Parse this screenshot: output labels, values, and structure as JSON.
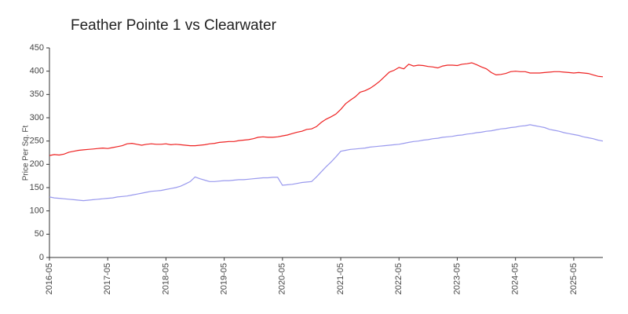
{
  "chart_data": {
    "type": "line",
    "title": "Feather Pointe 1 vs Clearwater",
    "y_label": "Price Per Sq. Ft",
    "x": [
      "2016-05",
      "2016-06",
      "2016-07",
      "2016-08",
      "2016-09",
      "2016-10",
      "2016-11",
      "2016-12",
      "2017-01",
      "2017-02",
      "2017-03",
      "2017-04",
      "2017-05",
      "2017-06",
      "2017-07",
      "2017-08",
      "2017-09",
      "2017-10",
      "2017-11",
      "2017-12",
      "2018-01",
      "2018-02",
      "2018-03",
      "2018-04",
      "2018-05",
      "2018-06",
      "2018-07",
      "2018-08",
      "2018-09",
      "2018-10",
      "2018-11",
      "2018-12",
      "2019-01",
      "2019-02",
      "2019-03",
      "2019-04",
      "2019-05",
      "2019-06",
      "2019-07",
      "2019-08",
      "2019-09",
      "2019-10",
      "2019-11",
      "2019-12",
      "2020-01",
      "2020-02",
      "2020-03",
      "2020-04",
      "2020-05",
      "2020-06",
      "2020-07",
      "2020-08",
      "2020-09",
      "2020-10",
      "2020-11",
      "2020-12",
      "2021-01",
      "2021-02",
      "2021-03",
      "2021-04",
      "2021-05",
      "2021-06",
      "2021-07",
      "2021-08",
      "2021-09",
      "2021-10",
      "2021-11",
      "2021-12",
      "2022-01",
      "2022-02",
      "2022-03",
      "2022-04",
      "2022-05",
      "2022-06",
      "2022-07",
      "2022-08",
      "2022-09",
      "2022-10",
      "2022-11",
      "2022-12",
      "2023-01",
      "2023-02",
      "2023-03",
      "2023-04",
      "2023-05",
      "2023-06",
      "2023-07",
      "2023-08",
      "2023-09",
      "2023-10",
      "2023-11",
      "2023-12",
      "2024-01",
      "2024-02",
      "2024-03",
      "2024-04",
      "2024-05",
      "2024-06",
      "2024-07",
      "2024-08",
      "2024-09",
      "2024-10",
      "2024-11",
      "2024-12",
      "2025-01",
      "2025-02",
      "2025-03",
      "2025-04",
      "2025-05",
      "2025-06",
      "2025-07",
      "2025-08",
      "2025-09",
      "2025-10",
      "2025-11"
    ],
    "series": [
      {
        "color": "#ee2222",
        "values": [
          219,
          221,
          220,
          222,
          226,
          228,
          230,
          231,
          232,
          233,
          234,
          235,
          234,
          236,
          238,
          240,
          244,
          245,
          243,
          241,
          243,
          244,
          243,
          243,
          244,
          242,
          243,
          242,
          241,
          240,
          240,
          241,
          242,
          244,
          245,
          247,
          248,
          249,
          249,
          251,
          252,
          253,
          255,
          258,
          259,
          258,
          258,
          259,
          261,
          263,
          266,
          269,
          271,
          275,
          276,
          281,
          290,
          297,
          302,
          308,
          318,
          330,
          338,
          345,
          355,
          358,
          363,
          370,
          378,
          388,
          398,
          402,
          408,
          405,
          415,
          411,
          413,
          412,
          410,
          409,
          407,
          411,
          413,
          413,
          412,
          415,
          416,
          418,
          414,
          409,
          405,
          397,
          392,
          393,
          395,
          399,
          400,
          399,
          399,
          396,
          396,
          396,
          397,
          398,
          399,
          399,
          398,
          397,
          396,
          397,
          396,
          395,
          392,
          389,
          388
        ]
      },
      {
        "color": "#9999ee",
        "values": [
          130,
          128,
          127,
          126,
          125,
          124,
          123,
          122,
          123,
          124,
          125,
          126,
          127,
          128,
          130,
          131,
          132,
          134,
          136,
          138,
          140,
          142,
          143,
          144,
          146,
          148,
          150,
          153,
          158,
          163,
          173,
          169,
          166,
          163,
          163,
          164,
          165,
          165,
          166,
          167,
          167,
          168,
          169,
          170,
          171,
          171,
          172,
          172,
          155,
          156,
          157,
          159,
          161,
          162,
          163,
          173,
          184,
          195,
          205,
          216,
          228,
          230,
          232,
          233,
          234,
          235,
          237,
          238,
          239,
          240,
          241,
          242,
          243,
          245,
          247,
          249,
          250,
          252,
          253,
          255,
          256,
          258,
          259,
          260,
          262,
          263,
          265,
          266,
          268,
          269,
          271,
          272,
          274,
          276,
          277,
          279,
          280,
          282,
          283,
          285,
          283,
          281,
          279,
          275,
          273,
          271,
          268,
          266,
          264,
          262,
          259,
          257,
          255,
          252,
          250
        ]
      }
    ],
    "ylim": [
      0,
      450
    ],
    "yticks": [
      0,
      50,
      100,
      150,
      200,
      250,
      300,
      350,
      400,
      450
    ],
    "grid": false
  }
}
